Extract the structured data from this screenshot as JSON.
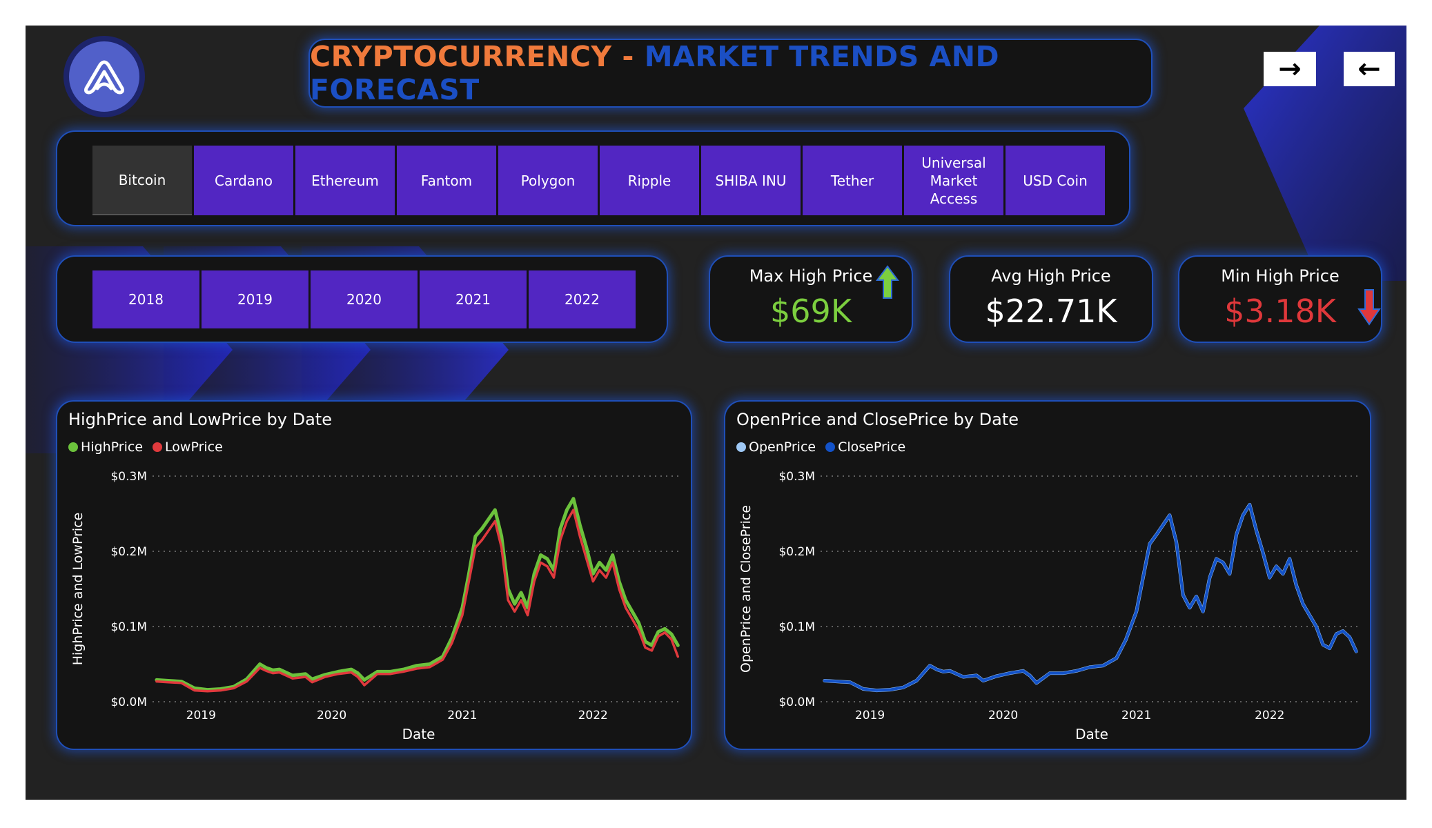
{
  "header": {
    "title_part1": "CRYPTOCURRENCY",
    "title_sep": " - ",
    "title_part2": "MARKET TRENDS AND FORECAST",
    "nav": [
      {
        "label": "→",
        "icon": "arrow-right-icon"
      },
      {
        "label": "←",
        "icon": "arrow-left-icon"
      }
    ]
  },
  "colors": {
    "title_orange": "#f07a3c",
    "title_blue": "#1b4fc4",
    "selected_tile": "#333333",
    "tile": "#5226c2",
    "max_green": "#7ccf3f",
    "min_red": "#e0383b",
    "high_series": "#6cc23c",
    "low_series": "#e03a3d",
    "open_series": "#9ec8f5",
    "close_series": "#1352c8"
  },
  "coins": {
    "selected": "Bitcoin",
    "items": [
      "Bitcoin",
      "Cardano",
      "Ethereum",
      "Fantom",
      "Polygon",
      "Ripple",
      "SHIBA INU",
      "Tether",
      "Universal Market Access",
      "USD Coin"
    ]
  },
  "years": [
    "2018",
    "2019",
    "2020",
    "2021",
    "2022"
  ],
  "kpis": {
    "max": {
      "label": "Max High Price",
      "value": "$69K",
      "icon": "arrow-up-icon"
    },
    "avg": {
      "label": "Avg High Price",
      "value": "$22.71K"
    },
    "min": {
      "label": "Min High Price",
      "value": "$3.18K",
      "icon": "arrow-down-icon"
    }
  },
  "chart_data": [
    {
      "type": "line",
      "title": "HighPrice and LowPrice by Date",
      "xlabel": "Date",
      "ylabel": "HighPrice and LowPrice",
      "y_ticks": [
        "$0.0M",
        "$0.1M",
        "$0.2M",
        "$0.3M"
      ],
      "x_ticks": [
        "2019",
        "2020",
        "2021",
        "2022"
      ],
      "ylim": [
        0,
        0.3
      ],
      "grid": true,
      "legend_position": "top-left",
      "x": [
        2018.66,
        2018.75,
        2018.85,
        2018.95,
        2019.05,
        2019.15,
        2019.25,
        2019.35,
        2019.45,
        2019.5,
        2019.55,
        2019.6,
        2019.7,
        2019.8,
        2019.85,
        2019.95,
        2020.05,
        2020.15,
        2020.2,
        2020.25,
        2020.35,
        2020.45,
        2020.55,
        2020.65,
        2020.75,
        2020.85,
        2020.92,
        2021.0,
        2021.05,
        2021.1,
        2021.15,
        2021.25,
        2021.3,
        2021.35,
        2021.4,
        2021.45,
        2021.5,
        2021.55,
        2021.6,
        2021.65,
        2021.7,
        2021.75,
        2021.8,
        2021.85,
        2021.9,
        2021.95,
        2022.0,
        2022.05,
        2022.1,
        2022.15,
        2022.2,
        2022.25,
        2022.3,
        2022.35,
        2022.4,
        2022.45,
        2022.5,
        2022.55,
        2022.6,
        2022.65
      ],
      "series": [
        {
          "name": "HighPrice",
          "values": [
            0.029,
            0.028,
            0.027,
            0.018,
            0.016,
            0.017,
            0.02,
            0.03,
            0.05,
            0.045,
            0.042,
            0.043,
            0.035,
            0.037,
            0.03,
            0.036,
            0.04,
            0.043,
            0.038,
            0.029,
            0.04,
            0.04,
            0.043,
            0.048,
            0.05,
            0.06,
            0.085,
            0.125,
            0.17,
            0.22,
            0.23,
            0.255,
            0.22,
            0.15,
            0.13,
            0.145,
            0.125,
            0.17,
            0.195,
            0.19,
            0.175,
            0.23,
            0.255,
            0.27,
            0.235,
            0.205,
            0.17,
            0.185,
            0.175,
            0.195,
            0.16,
            0.135,
            0.12,
            0.105,
            0.08,
            0.075,
            0.093,
            0.097,
            0.09,
            0.075
          ]
        },
        {
          "name": "LowPrice",
          "values": [
            0.027,
            0.026,
            0.025,
            0.015,
            0.014,
            0.015,
            0.018,
            0.027,
            0.045,
            0.041,
            0.038,
            0.039,
            0.031,
            0.033,
            0.026,
            0.033,
            0.037,
            0.039,
            0.033,
            0.022,
            0.037,
            0.037,
            0.04,
            0.044,
            0.046,
            0.056,
            0.078,
            0.115,
            0.16,
            0.205,
            0.215,
            0.24,
            0.205,
            0.135,
            0.12,
            0.135,
            0.115,
            0.16,
            0.185,
            0.18,
            0.165,
            0.215,
            0.24,
            0.255,
            0.22,
            0.19,
            0.16,
            0.175,
            0.165,
            0.185,
            0.15,
            0.125,
            0.11,
            0.095,
            0.072,
            0.068,
            0.087,
            0.092,
            0.083,
            0.06
          ]
        }
      ]
    },
    {
      "type": "line",
      "title": "OpenPrice and ClosePrice by Date",
      "xlabel": "Date",
      "ylabel": "OpenPrice and ClosePrice",
      "y_ticks": [
        "$0.0M",
        "$0.1M",
        "$0.2M",
        "$0.3M"
      ],
      "x_ticks": [
        "2019",
        "2020",
        "2021",
        "2022"
      ],
      "ylim": [
        0,
        0.3
      ],
      "grid": true,
      "legend_position": "top-left",
      "x": [
        2018.66,
        2018.75,
        2018.85,
        2018.95,
        2019.05,
        2019.15,
        2019.25,
        2019.35,
        2019.45,
        2019.5,
        2019.55,
        2019.6,
        2019.7,
        2019.8,
        2019.85,
        2019.95,
        2020.05,
        2020.15,
        2020.2,
        2020.25,
        2020.35,
        2020.45,
        2020.55,
        2020.65,
        2020.75,
        2020.85,
        2020.92,
        2021.0,
        2021.05,
        2021.1,
        2021.15,
        2021.25,
        2021.3,
        2021.35,
        2021.4,
        2021.45,
        2021.5,
        2021.55,
        2021.6,
        2021.65,
        2021.7,
        2021.75,
        2021.8,
        2021.85,
        2021.9,
        2021.95,
        2022.0,
        2022.05,
        2022.1,
        2022.15,
        2022.2,
        2022.25,
        2022.3,
        2022.35,
        2022.4,
        2022.45,
        2022.5,
        2022.55,
        2022.6,
        2022.65
      ],
      "series": [
        {
          "name": "OpenPrice",
          "values": [
            0.028,
            0.027,
            0.026,
            0.017,
            0.015,
            0.016,
            0.019,
            0.028,
            0.048,
            0.043,
            0.04,
            0.041,
            0.033,
            0.035,
            0.028,
            0.034,
            0.038,
            0.041,
            0.035,
            0.025,
            0.038,
            0.038,
            0.041,
            0.046,
            0.048,
            0.058,
            0.082,
            0.12,
            0.165,
            0.21,
            0.222,
            0.248,
            0.212,
            0.142,
            0.125,
            0.14,
            0.12,
            0.165,
            0.19,
            0.185,
            0.17,
            0.222,
            0.248,
            0.262,
            0.228,
            0.198,
            0.165,
            0.18,
            0.17,
            0.19,
            0.155,
            0.13,
            0.115,
            0.1,
            0.076,
            0.071,
            0.09,
            0.094,
            0.086,
            0.067
          ]
        },
        {
          "name": "ClosePrice",
          "values": [
            0.028,
            0.027,
            0.026,
            0.017,
            0.015,
            0.016,
            0.019,
            0.028,
            0.048,
            0.043,
            0.04,
            0.041,
            0.033,
            0.035,
            0.028,
            0.034,
            0.038,
            0.041,
            0.035,
            0.025,
            0.038,
            0.038,
            0.041,
            0.046,
            0.048,
            0.058,
            0.082,
            0.12,
            0.165,
            0.21,
            0.222,
            0.248,
            0.212,
            0.142,
            0.125,
            0.14,
            0.12,
            0.165,
            0.19,
            0.185,
            0.17,
            0.222,
            0.248,
            0.262,
            0.228,
            0.198,
            0.165,
            0.18,
            0.17,
            0.19,
            0.155,
            0.13,
            0.115,
            0.1,
            0.076,
            0.071,
            0.09,
            0.094,
            0.086,
            0.067
          ]
        }
      ]
    }
  ]
}
